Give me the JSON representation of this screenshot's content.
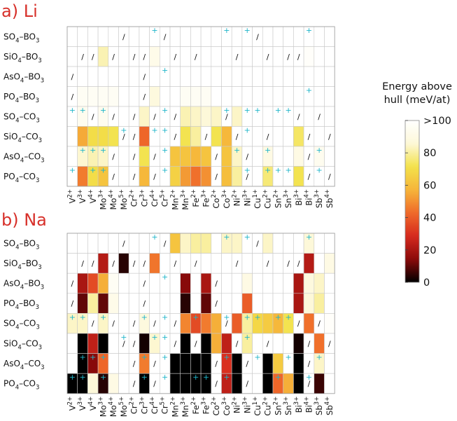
{
  "chart_data": {
    "type": "heatmap",
    "colorbar": {
      "title_lines": [
        "Energy above",
        "hull (meV/at)"
      ],
      "ticks": [
        ">100",
        "80",
        "60",
        "40",
        "20",
        "0"
      ],
      "tick_values": [
        100,
        80,
        60,
        40,
        20,
        0
      ],
      "range": [
        0,
        100
      ],
      "colormap": [
        "#000000",
        "#8b0a0a",
        "#d62a1e",
        "#ef6a2a",
        "#f6b53a",
        "#f3e24a",
        "#fdf8d8",
        "#ffffff"
      ]
    },
    "columns": [
      "V2+",
      "V3+",
      "V4+",
      "Mo3+",
      "Mo4+",
      "Mo5+",
      "Cr2+",
      "Cr3+",
      "Cr4+",
      "Cr5+",
      "Mn2+",
      "Mn3+",
      "Fe2+",
      "Fe3+",
      "Co2+",
      "Co3+",
      "Ni2+",
      "Ni3+",
      "Cu1+",
      "Cu2+",
      "Sn2+",
      "Sn3+",
      "Bi3+",
      "Bi4+",
      "Sb3+",
      "Sb4+"
    ],
    "column_labels": [
      {
        "base": "V",
        "sup": "2+"
      },
      {
        "base": "V",
        "sup": "3+"
      },
      {
        "base": "V",
        "sup": "4+"
      },
      {
        "base": "Mo",
        "sup": "3+"
      },
      {
        "base": "Mo",
        "sup": "4+"
      },
      {
        "base": "Mo",
        "sup": "5+"
      },
      {
        "base": "Cr",
        "sup": "2+"
      },
      {
        "base": "Cr",
        "sup": "3+"
      },
      {
        "base": "Cr",
        "sup": "4+"
      },
      {
        "base": "Cr",
        "sup": "5+"
      },
      {
        "base": "Mn",
        "sup": "2+"
      },
      {
        "base": "Mn",
        "sup": "3+"
      },
      {
        "base": "Fe",
        "sup": "2+"
      },
      {
        "base": "Fe",
        "sup": "3+"
      },
      {
        "base": "Co",
        "sup": "2+"
      },
      {
        "base": "Co",
        "sup": "3+"
      },
      {
        "base": "Ni",
        "sup": "2+"
      },
      {
        "base": "Ni",
        "sup": "3+"
      },
      {
        "base": "Cu",
        "sup": "1+"
      },
      {
        "base": "Cu",
        "sup": "2+"
      },
      {
        "base": "Sn",
        "sup": "2+"
      },
      {
        "base": "Sn",
        "sup": "3+"
      },
      {
        "base": "Bi",
        "sup": "3+"
      },
      {
        "base": "Bi",
        "sup": "4+"
      },
      {
        "base": "Sb",
        "sup": "3+"
      },
      {
        "base": "Sb",
        "sup": "4+"
      }
    ],
    "rows": [
      "SO4–BO3",
      "SiO4–BO3",
      "AsO4–BO3",
      "PO4–BO3",
      "SO4–CO3",
      "SiO4–CO3",
      "AsO4–CO3",
      "PO4–CO3"
    ],
    "row_labels": [
      {
        "a": "SO",
        "b": "–BO"
      },
      {
        "a": "SiO",
        "b": "–BO"
      },
      {
        "a": "AsO",
        "b": "–BO"
      },
      {
        "a": "PO",
        "b": "–BO"
      },
      {
        "a": "SO",
        "b": "–CO"
      },
      {
        "a": "SiO",
        "b": "–CO"
      },
      {
        "a": "AsO",
        "b": "–CO"
      },
      {
        "a": "PO",
        "b": "–CO"
      }
    ],
    "row_subscripts": [
      "4",
      "3"
    ],
    "panels": [
      {
        "label": "a) Li",
        "values": [
          [
            100,
            100,
            100,
            100,
            100,
            "/",
            100,
            100,
            100,
            "/",
            100,
            100,
            100,
            100,
            100,
            100,
            100,
            100,
            "/",
            100,
            100,
            100,
            100,
            100,
            100,
            100
          ],
          [
            100,
            "/",
            "/",
            82,
            "/",
            100,
            "/",
            "/",
            92,
            100,
            "/",
            100,
            "/",
            100,
            100,
            100,
            "/",
            100,
            100,
            "/",
            100,
            "/",
            "/",
            98,
            100,
            100
          ],
          [
            "/",
            100,
            100,
            100,
            100,
            100,
            100,
            "/",
            100,
            100,
            100,
            100,
            100,
            100,
            100,
            100,
            100,
            100,
            100,
            100,
            100,
            100,
            100,
            100,
            100,
            100
          ],
          [
            "/",
            96,
            96,
            96,
            96,
            100,
            100,
            "/",
            88,
            100,
            100,
            96,
            96,
            96,
            100,
            100,
            100,
            100,
            100,
            100,
            100,
            100,
            100,
            100,
            100,
            100
          ],
          [
            100,
            94,
            "/",
            94,
            "/",
            100,
            "/",
            84,
            "/",
            100,
            "/",
            82,
            84,
            86,
            84,
            "/",
            84,
            100,
            100,
            100,
            100,
            100,
            "/",
            100,
            "/",
            100
          ],
          [
            100,
            55,
            70,
            70,
            72,
            "/",
            "/",
            42,
            100,
            100,
            "/",
            72,
            80,
            "/",
            72,
            58,
            "/",
            100,
            100,
            "/",
            100,
            100,
            74,
            "/",
            100,
            "/"
          ],
          [
            100,
            85,
            82,
            84,
            "/",
            100,
            "/",
            72,
            "/",
            100,
            62,
            62,
            58,
            62,
            "/",
            62,
            84,
            "/",
            100,
            90,
            100,
            100,
            90,
            "/",
            94,
            100
          ],
          [
            100,
            46,
            70,
            62,
            "/",
            100,
            "/",
            58,
            "/",
            100,
            66,
            52,
            44,
            50,
            "/",
            60,
            80,
            "/",
            100,
            76,
            100,
            100,
            72,
            "/",
            100,
            "/"
          ]
        ],
        "plus": [
          [
            0,
            0,
            0,
            0,
            0,
            0,
            0,
            0,
            1,
            0,
            0,
            0,
            0,
            0,
            0,
            1,
            0,
            1,
            0,
            0,
            0,
            0,
            0,
            1,
            0,
            0
          ],
          [
            0,
            0,
            0,
            0,
            0,
            0,
            0,
            0,
            0,
            0,
            0,
            0,
            0,
            0,
            0,
            0,
            0,
            0,
            0,
            0,
            0,
            0,
            0,
            0,
            0,
            0
          ],
          [
            0,
            0,
            0,
            0,
            0,
            0,
            0,
            0,
            0,
            1,
            0,
            0,
            0,
            0,
            0,
            0,
            0,
            0,
            0,
            0,
            0,
            0,
            0,
            0,
            0,
            0
          ],
          [
            0,
            0,
            0,
            0,
            0,
            0,
            0,
            0,
            0,
            0,
            0,
            0,
            0,
            0,
            0,
            0,
            0,
            0,
            0,
            0,
            0,
            0,
            0,
            1,
            0,
            0
          ],
          [
            1,
            1,
            0,
            1,
            0,
            0,
            0,
            0,
            0,
            1,
            0,
            0,
            0,
            0,
            0,
            1,
            0,
            1,
            1,
            0,
            1,
            1,
            0,
            0,
            0,
            0
          ],
          [
            0,
            0,
            0,
            0,
            0,
            1,
            0,
            0,
            1,
            1,
            0,
            0,
            0,
            0,
            0,
            0,
            0,
            1,
            0,
            0,
            0,
            0,
            0,
            0,
            0,
            0
          ],
          [
            0,
            1,
            1,
            1,
            0,
            0,
            0,
            0,
            0,
            1,
            0,
            0,
            0,
            0,
            0,
            0,
            1,
            0,
            0,
            1,
            0,
            0,
            0,
            0,
            1,
            0
          ],
          [
            1,
            0,
            1,
            1,
            0,
            0,
            0,
            0,
            0,
            1,
            0,
            0,
            0,
            0,
            0,
            0,
            0,
            1,
            0,
            1,
            1,
            1,
            0,
            0,
            1,
            0
          ]
        ]
      },
      {
        "label": "b) Na",
        "values": [
          [
            100,
            100,
            100,
            100,
            100,
            "/",
            100,
            100,
            100,
            "/",
            62,
            84,
            80,
            80,
            100,
            84,
            84,
            100,
            "/",
            84,
            100,
            100,
            100,
            86,
            100,
            100
          ],
          [
            100,
            "/",
            "/",
            22,
            "/",
            4,
            "/",
            "/",
            45,
            100,
            "/",
            100,
            "/",
            100,
            100,
            100,
            "/",
            100,
            100,
            "/",
            100,
            "/",
            "/",
            22,
            100,
            90
          ],
          [
            "/",
            20,
            36,
            56,
            96,
            100,
            100,
            "/",
            100,
            100,
            100,
            14,
            100,
            20,
            "/",
            100,
            100,
            90,
            100,
            100,
            100,
            100,
            20,
            88,
            84,
            100
          ],
          [
            "/",
            10,
            80,
            10,
            92,
            100,
            100,
            "/",
            100,
            100,
            100,
            4,
            100,
            10,
            "/",
            100,
            100,
            40,
            100,
            100,
            100,
            100,
            20,
            86,
            80,
            100
          ],
          [
            84,
            84,
            "/",
            84,
            "/",
            100,
            "/",
            88,
            "/",
            100,
            "/",
            48,
            36,
            46,
            56,
            "/",
            40,
            80,
            68,
            64,
            58,
            72,
            "/",
            44,
            "/",
            98
          ],
          [
            100,
            0,
            24,
            0,
            100,
            "/",
            "/",
            2,
            85,
            100,
            "/",
            0,
            "/",
            0,
            56,
            24,
            "/",
            80,
            100,
            "/",
            100,
            100,
            2,
            "/",
            44,
            "/"
          ],
          [
            100,
            0,
            14,
            42,
            100,
            100,
            "/",
            46,
            "/",
            100,
            0,
            0,
            0,
            0,
            "/",
            30,
            0,
            "/",
            100,
            0,
            64,
            100,
            0,
            "/",
            84,
            100
          ],
          [
            0,
            0,
            86,
            4,
            90,
            100,
            "/",
            0,
            "/",
            100,
            0,
            0,
            0,
            0,
            "/",
            24,
            0,
            "/",
            100,
            0,
            42,
            56,
            0,
            "/",
            6,
            100
          ]
        ],
        "plus": [
          [
            0,
            0,
            0,
            0,
            0,
            0,
            0,
            0,
            1,
            0,
            0,
            0,
            0,
            0,
            0,
            1,
            0,
            1,
            0,
            0,
            0,
            0,
            0,
            1,
            0,
            0
          ],
          [
            0,
            0,
            0,
            0,
            0,
            0,
            0,
            0,
            0,
            0,
            0,
            0,
            0,
            0,
            0,
            0,
            0,
            0,
            0,
            0,
            0,
            0,
            0,
            0,
            0,
            0
          ],
          [
            0,
            0,
            0,
            0,
            0,
            0,
            0,
            0,
            0,
            1,
            0,
            0,
            0,
            0,
            0,
            0,
            0,
            0,
            0,
            0,
            0,
            0,
            0,
            0,
            0,
            0
          ],
          [
            0,
            0,
            0,
            0,
            0,
            0,
            0,
            0,
            0,
            0,
            0,
            0,
            0,
            0,
            0,
            0,
            0,
            0,
            0,
            0,
            0,
            0,
            0,
            0,
            0,
            0
          ],
          [
            1,
            1,
            0,
            1,
            0,
            0,
            0,
            1,
            0,
            1,
            0,
            0,
            1,
            0,
            0,
            1,
            0,
            1,
            1,
            0,
            1,
            1,
            0,
            0,
            0,
            0
          ],
          [
            0,
            0,
            0,
            0,
            0,
            1,
            0,
            0,
            1,
            1,
            0,
            0,
            0,
            0,
            0,
            0,
            0,
            1,
            0,
            0,
            0,
            0,
            0,
            0,
            0,
            0
          ],
          [
            0,
            1,
            1,
            1,
            0,
            0,
            0,
            1,
            0,
            1,
            0,
            0,
            0,
            0,
            0,
            1,
            0,
            0,
            1,
            0,
            0,
            1,
            0,
            0,
            1,
            0
          ],
          [
            1,
            1,
            0,
            1,
            0,
            0,
            0,
            1,
            0,
            1,
            0,
            0,
            1,
            1,
            0,
            1,
            0,
            0,
            0,
            0,
            1,
            0,
            0,
            1,
            0,
            0
          ]
        ]
      }
    ]
  }
}
